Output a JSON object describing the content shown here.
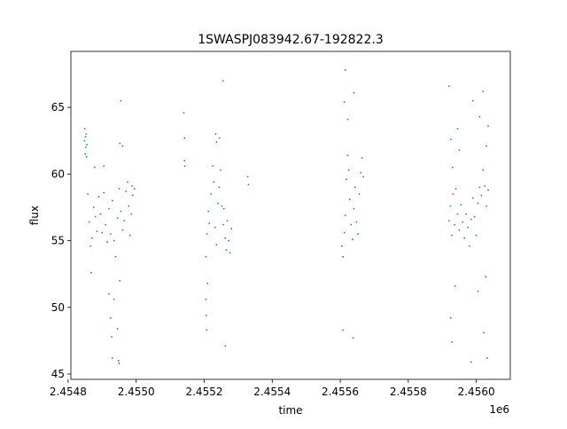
{
  "chart_data": {
    "type": "scatter",
    "title": "1SWASPJ083942.67-192822.3",
    "xlabel": "time",
    "ylabel": "flux",
    "x_offset_label": "1e6",
    "x_scale_factor": 1000000,
    "xlim": [
      2454808,
      2456100
    ],
    "ylim": [
      44.6,
      69.2
    ],
    "x_ticks": [
      2454800,
      2455000,
      2455200,
      2455400,
      2455600,
      2455800,
      2456000
    ],
    "x_tick_labels": [
      "2.4548",
      "2.4550",
      "2.4552",
      "2.4554",
      "2.4556",
      "2.4558",
      "2.4560"
    ],
    "y_ticks": [
      45,
      50,
      55,
      60,
      65
    ],
    "y_tick_labels": [
      "45",
      "50",
      "55",
      "60",
      "65"
    ],
    "grid": false,
    "legend": "none",
    "marker_color": "#1f77b4",
    "series": [
      {
        "points": [
          [
            2454848,
            62.5
          ],
          [
            2454849,
            63.4
          ],
          [
            2454850,
            61.5
          ],
          [
            2454851,
            62.8
          ],
          [
            2454852,
            62.0
          ],
          [
            2454853,
            63.0
          ],
          [
            2454854,
            61.3
          ],
          [
            2454855,
            62.2
          ],
          [
            2454858,
            58.5
          ],
          [
            2454862,
            56.4
          ],
          [
            2454866,
            54.6
          ],
          [
            2454870,
            55.2
          ],
          [
            2454875,
            57.5
          ],
          [
            2454880,
            56.8
          ],
          [
            2454885,
            55.7
          ],
          [
            2454890,
            58.3
          ],
          [
            2454895,
            57.0
          ],
          [
            2454900,
            55.6
          ],
          [
            2454905,
            58.6
          ],
          [
            2454910,
            56.2
          ],
          [
            2454915,
            54.9
          ],
          [
            2454920,
            57.4
          ],
          [
            2454925,
            55.5
          ],
          [
            2454930,
            58.0
          ],
          [
            2454935,
            55.0
          ],
          [
            2454940,
            53.8
          ],
          [
            2454945,
            56.7
          ],
          [
            2454950,
            58.9
          ],
          [
            2454955,
            57.2
          ],
          [
            2454960,
            55.8
          ],
          [
            2454965,
            56.5
          ],
          [
            2454970,
            58.7
          ],
          [
            2454975,
            59.4
          ],
          [
            2454978,
            57.6
          ],
          [
            2454982,
            55.4
          ],
          [
            2454986,
            57.0
          ],
          [
            2454988,
            59.1
          ],
          [
            2454990,
            58.4
          ],
          [
            2454995,
            58.9
          ],
          [
            2454920,
            51.0
          ],
          [
            2454925,
            49.2
          ],
          [
            2454928,
            47.8
          ],
          [
            2454930,
            46.2
          ],
          [
            2454935,
            50.6
          ],
          [
            2454945,
            48.4
          ],
          [
            2454948,
            46.0
          ],
          [
            2454950,
            45.8
          ],
          [
            2454952,
            52.0
          ],
          [
            2454868,
            52.6
          ],
          [
            2454878,
            60.5
          ],
          [
            2454905,
            60.6
          ],
          [
            2454952,
            62.3
          ],
          [
            2454955,
            65.5
          ],
          [
            2454960,
            62.1
          ],
          [
            2455140,
            64.6
          ],
          [
            2455142,
            62.7
          ],
          [
            2455142,
            61.0
          ],
          [
            2455143,
            60.6
          ],
          [
            2455205,
            53.8
          ],
          [
            2455208,
            55.5
          ],
          [
            2455212,
            57.2
          ],
          [
            2455215,
            56.3
          ],
          [
            2455220,
            58.5
          ],
          [
            2455225,
            60.6
          ],
          [
            2455228,
            59.4
          ],
          [
            2455232,
            56.0
          ],
          [
            2455236,
            54.7
          ],
          [
            2455240,
            57.8
          ],
          [
            2455244,
            59.0
          ],
          [
            2455248,
            60.3
          ],
          [
            2455252,
            57.6
          ],
          [
            2455256,
            56.2
          ],
          [
            2455258,
            57.4
          ],
          [
            2455262,
            55.2
          ],
          [
            2455265,
            54.3
          ],
          [
            2455268,
            56.5
          ],
          [
            2455272,
            55.0
          ],
          [
            2455276,
            54.1
          ],
          [
            2455280,
            55.9
          ],
          [
            2455205,
            50.6
          ],
          [
            2455206,
            49.4
          ],
          [
            2455207,
            48.3
          ],
          [
            2455210,
            51.8
          ],
          [
            2455234,
            63.0
          ],
          [
            2455236,
            62.4
          ],
          [
            2455245,
            62.7
          ],
          [
            2455255,
            67.0
          ],
          [
            2455262,
            47.1
          ],
          [
            2455328,
            59.8
          ],
          [
            2455330,
            59.2
          ],
          [
            2455605,
            54.6
          ],
          [
            2455608,
            53.8
          ],
          [
            2455612,
            55.6
          ],
          [
            2455615,
            56.9
          ],
          [
            2455618,
            59.6
          ],
          [
            2455622,
            61.4
          ],
          [
            2455625,
            60.3
          ],
          [
            2455628,
            58.1
          ],
          [
            2455632,
            56.2
          ],
          [
            2455636,
            55.1
          ],
          [
            2455640,
            57.4
          ],
          [
            2455644,
            59.0
          ],
          [
            2455648,
            56.4
          ],
          [
            2455652,
            55.5
          ],
          [
            2455656,
            58.5
          ],
          [
            2455660,
            60.1
          ],
          [
            2455664,
            61.2
          ],
          [
            2455668,
            59.8
          ],
          [
            2455612,
            65.4
          ],
          [
            2455615,
            67.8
          ],
          [
            2455622,
            64.1
          ],
          [
            2455640,
            66.1
          ],
          [
            2455608,
            48.3
          ],
          [
            2455638,
            47.7
          ],
          [
            2455920,
            56.5
          ],
          [
            2455924,
            57.6
          ],
          [
            2455928,
            55.4
          ],
          [
            2455932,
            58.5
          ],
          [
            2455936,
            56.2
          ],
          [
            2455940,
            58.9
          ],
          [
            2455945,
            57.0
          ],
          [
            2455950,
            55.8
          ],
          [
            2455955,
            57.7
          ],
          [
            2455960,
            56.4
          ],
          [
            2455965,
            55.2
          ],
          [
            2455970,
            57.0
          ],
          [
            2455975,
            56.0
          ],
          [
            2455980,
            54.6
          ],
          [
            2455985,
            56.6
          ],
          [
            2455990,
            58.2
          ],
          [
            2455995,
            56.8
          ],
          [
            2456000,
            55.4
          ],
          [
            2456005,
            57.8
          ],
          [
            2456010,
            59.0
          ],
          [
            2456015,
            58.4
          ],
          [
            2456020,
            60.3
          ],
          [
            2456025,
            59.1
          ],
          [
            2456030,
            57.6
          ],
          [
            2456035,
            58.8
          ],
          [
            2455920,
            66.6
          ],
          [
            2455925,
            62.6
          ],
          [
            2455930,
            60.5
          ],
          [
            2455945,
            63.4
          ],
          [
            2455950,
            61.8
          ],
          [
            2455990,
            65.5
          ],
          [
            2456010,
            64.3
          ],
          [
            2456020,
            66.2
          ],
          [
            2456030,
            62.1
          ],
          [
            2456035,
            63.6
          ],
          [
            2455925,
            49.2
          ],
          [
            2455928,
            47.4
          ],
          [
            2455938,
            51.6
          ],
          [
            2455985,
            45.9
          ],
          [
            2456005,
            51.2
          ],
          [
            2456022,
            48.1
          ],
          [
            2456028,
            52.3
          ],
          [
            2456032,
            46.2
          ]
        ]
      }
    ]
  }
}
